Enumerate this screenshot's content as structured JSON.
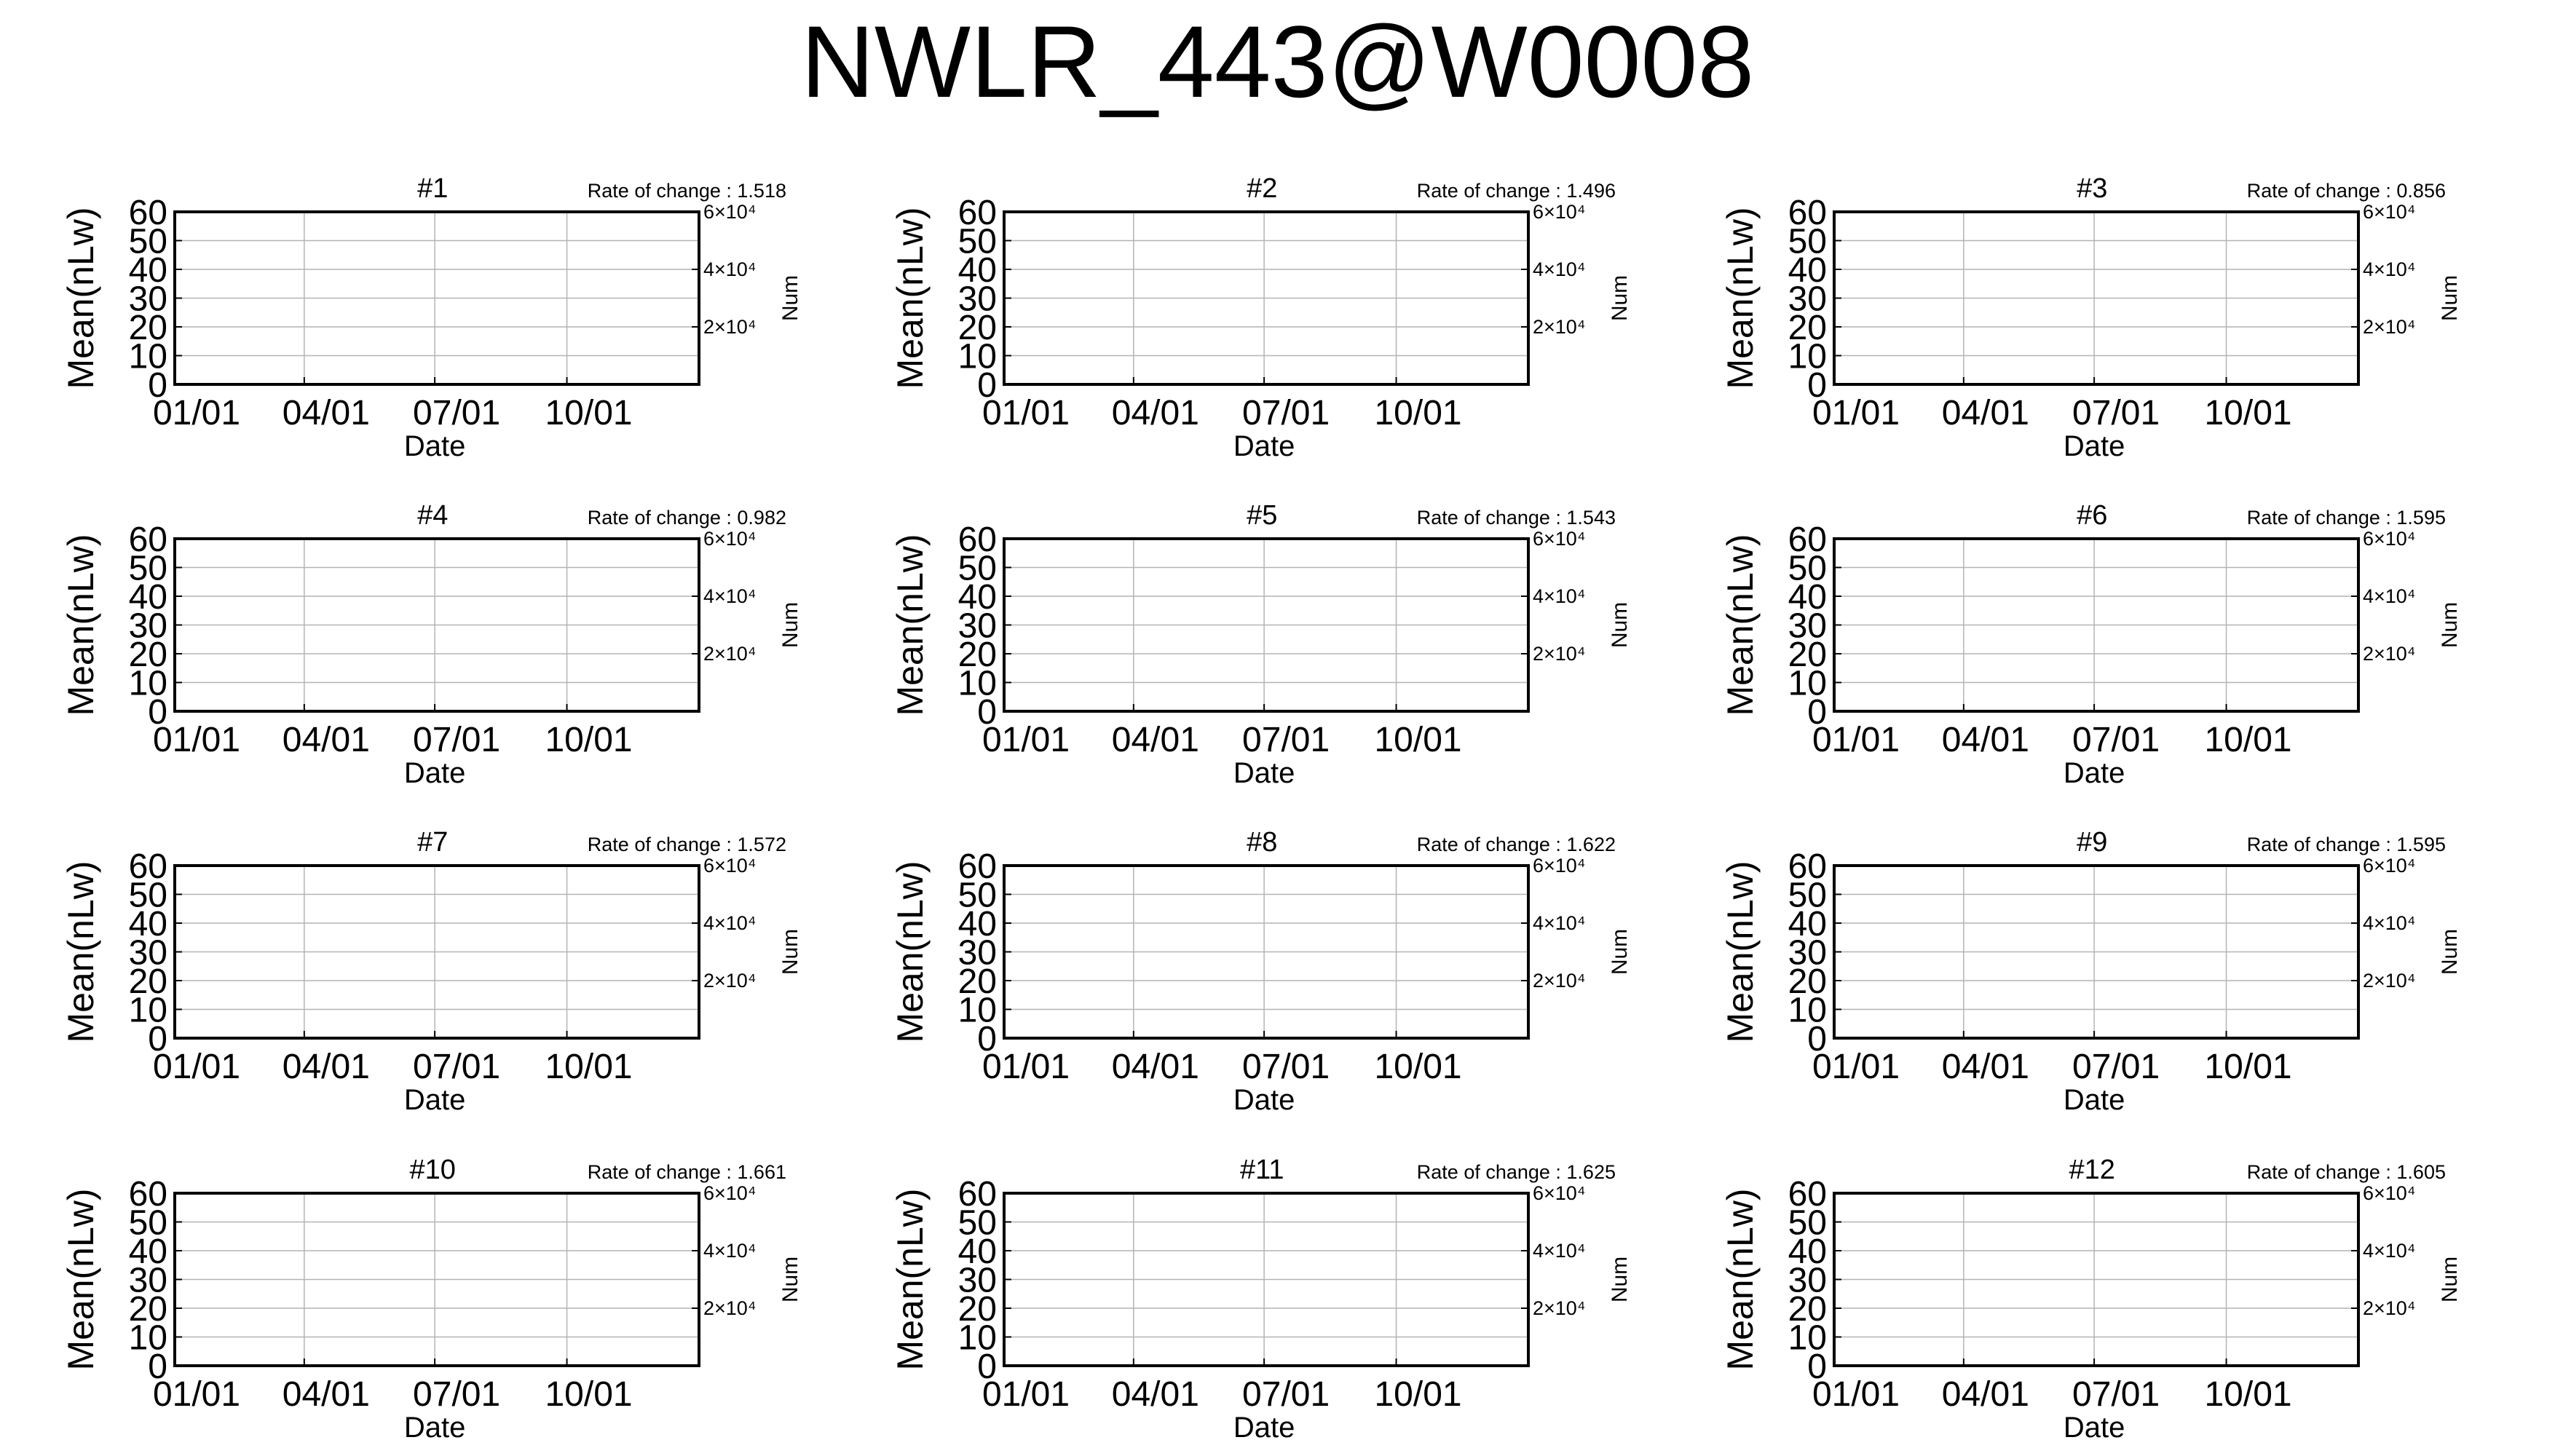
{
  "title": "NWLR_443@W0008",
  "chart_data": [
    {
      "type": "line",
      "title": "#1",
      "annotation": "Rate of change : 1.518",
      "xlabel": "Date",
      "ylabel": "Mean(nLw)",
      "y2label": "Num",
      "ylim": [
        0,
        60
      ],
      "yticks": [
        0,
        10,
        20,
        30,
        40,
        50,
        60
      ],
      "xticks": [
        "01/01",
        "04/01",
        "07/01",
        "10/01"
      ],
      "y2ticks": [
        "2×10⁴",
        "4×10⁴",
        "6×10⁴"
      ],
      "grid": true,
      "color": "#7fc4e0",
      "x": [],
      "y": [],
      "y_low": [],
      "y_high": []
    },
    {
      "type": "line",
      "title": "#2",
      "annotation": "Rate of change : 1.496",
      "xlabel": "Date",
      "ylabel": "Mean(nLw)",
      "y2label": "Num",
      "ylim": [
        0,
        60
      ],
      "yticks": [
        0,
        10,
        20,
        30,
        40,
        50,
        60
      ],
      "xticks": [
        "01/01",
        "04/01",
        "07/01",
        "10/01"
      ],
      "y2ticks": [
        "2×10⁴",
        "4×10⁴",
        "6×10⁴"
      ],
      "grid": true,
      "color": "#7fc4e0",
      "x": [],
      "y": [],
      "y_low": [],
      "y_high": []
    },
    {
      "type": "line",
      "title": "#3",
      "annotation": "Rate of change : 0.856",
      "xlabel": "Date",
      "ylabel": "Mean(nLw)",
      "y2label": "Num",
      "ylim": [
        0,
        60
      ],
      "yticks": [
        0,
        10,
        20,
        30,
        40,
        50,
        60
      ],
      "xticks": [
        "01/01",
        "04/01",
        "07/01",
        "10/01"
      ],
      "y2ticks": [
        "2×10⁴",
        "4×10⁴",
        "6×10⁴"
      ],
      "grid": true,
      "color": "#7fc4e0",
      "x": [],
      "y": [],
      "y_low": [],
      "y_high": []
    },
    {
      "type": "line",
      "title": "#4",
      "annotation": "Rate of change : 0.982",
      "xlabel": "Date",
      "ylabel": "Mean(nLw)",
      "y2label": "Num",
      "ylim": [
        0,
        60
      ],
      "yticks": [
        0,
        10,
        20,
        30,
        40,
        50,
        60
      ],
      "xticks": [
        "01/01",
        "04/01",
        "07/01",
        "10/01"
      ],
      "y2ticks": [
        "2×10⁴",
        "4×10⁴",
        "6×10⁴"
      ],
      "grid": true,
      "color": "#7fc4e0",
      "x": [],
      "y": [],
      "y_low": [],
      "y_high": []
    },
    {
      "type": "line",
      "title": "#5",
      "annotation": "Rate of change : 1.543",
      "xlabel": "Date",
      "ylabel": "Mean(nLw)",
      "y2label": "Num",
      "ylim": [
        0,
        60
      ],
      "yticks": [
        0,
        10,
        20,
        30,
        40,
        50,
        60
      ],
      "xticks": [
        "01/01",
        "04/01",
        "07/01",
        "10/01"
      ],
      "y2ticks": [
        "2×10⁴",
        "4×10⁴",
        "6×10⁴"
      ],
      "grid": true,
      "color": "#7fc4e0",
      "x": [],
      "y": [],
      "y_low": [],
      "y_high": []
    },
    {
      "type": "line",
      "title": "#6",
      "annotation": "Rate of change : 1.595",
      "xlabel": "Date",
      "ylabel": "Mean(nLw)",
      "y2label": "Num",
      "ylim": [
        0,
        60
      ],
      "yticks": [
        0,
        10,
        20,
        30,
        40,
        50,
        60
      ],
      "xticks": [
        "01/01",
        "04/01",
        "07/01",
        "10/01"
      ],
      "y2ticks": [
        "2×10⁴",
        "4×10⁴",
        "6×10⁴"
      ],
      "grid": true,
      "color": "#7fc4e0",
      "x": [],
      "y": [],
      "y_low": [],
      "y_high": []
    },
    {
      "type": "line",
      "title": "#7",
      "annotation": "Rate of change : 1.572",
      "xlabel": "Date",
      "ylabel": "Mean(nLw)",
      "y2label": "Num",
      "ylim": [
        0,
        60
      ],
      "yticks": [
        0,
        10,
        20,
        30,
        40,
        50,
        60
      ],
      "xticks": [
        "01/01",
        "04/01",
        "07/01",
        "10/01"
      ],
      "y2ticks": [
        "2×10⁴",
        "4×10⁴",
        "6×10⁴"
      ],
      "grid": true,
      "color": "#7fc4e0",
      "x": [],
      "y": [],
      "y_low": [],
      "y_high": []
    },
    {
      "type": "line",
      "title": "#8",
      "annotation": "Rate of change : 1.622",
      "xlabel": "Date",
      "ylabel": "Mean(nLw)",
      "y2label": "Num",
      "ylim": [
        0,
        60
      ],
      "yticks": [
        0,
        10,
        20,
        30,
        40,
        50,
        60
      ],
      "xticks": [
        "01/01",
        "04/01",
        "07/01",
        "10/01"
      ],
      "y2ticks": [
        "2×10⁴",
        "4×10⁴",
        "6×10⁴"
      ],
      "grid": true,
      "color": "#7fc4e0",
      "x": [],
      "y": [],
      "y_low": [],
      "y_high": []
    },
    {
      "type": "line",
      "title": "#9",
      "annotation": "Rate of change : 1.595",
      "xlabel": "Date",
      "ylabel": "Mean(nLw)",
      "y2label": "Num",
      "ylim": [
        0,
        60
      ],
      "yticks": [
        0,
        10,
        20,
        30,
        40,
        50,
        60
      ],
      "xticks": [
        "01/01",
        "04/01",
        "07/01",
        "10/01"
      ],
      "y2ticks": [
        "2×10⁴",
        "4×10⁴",
        "6×10⁴"
      ],
      "grid": true,
      "color": "#7fc4e0",
      "x": [],
      "y": [],
      "y_low": [],
      "y_high": []
    },
    {
      "type": "line",
      "title": "#10",
      "annotation": "Rate of change : 1.661",
      "xlabel": "Date",
      "ylabel": "Mean(nLw)",
      "y2label": "Num",
      "ylim": [
        0,
        60
      ],
      "yticks": [
        0,
        10,
        20,
        30,
        40,
        50,
        60
      ],
      "xticks": [
        "01/01",
        "04/01",
        "07/01",
        "10/01"
      ],
      "y2ticks": [
        "2×10⁴",
        "4×10⁴",
        "6×10⁴"
      ],
      "grid": true,
      "color": "#7fc4e0",
      "x": [],
      "y": [],
      "y_low": [],
      "y_high": []
    },
    {
      "type": "line",
      "title": "#11",
      "annotation": "Rate of change : 1.625",
      "xlabel": "Date",
      "ylabel": "Mean(nLw)",
      "y2label": "Num",
      "ylim": [
        0,
        60
      ],
      "yticks": [
        0,
        10,
        20,
        30,
        40,
        50,
        60
      ],
      "xticks": [
        "01/01",
        "04/01",
        "07/01",
        "10/01"
      ],
      "y2ticks": [
        "2×10⁴",
        "4×10⁴",
        "6×10⁴"
      ],
      "grid": true,
      "color": "#7fc4e0",
      "x": [],
      "y": [],
      "y_low": [],
      "y_high": []
    },
    {
      "type": "line",
      "title": "#12",
      "annotation": "Rate of change : 1.605",
      "xlabel": "Date",
      "ylabel": "Mean(nLw)",
      "y2label": "Num",
      "ylim": [
        0,
        60
      ],
      "yticks": [
        0,
        10,
        20,
        30,
        40,
        50,
        60
      ],
      "xticks": [
        "01/01",
        "04/01",
        "07/01",
        "10/01"
      ],
      "y2ticks": [
        "2×10⁴",
        "4×10⁴",
        "6×10⁴"
      ],
      "grid": true,
      "color": "#7fc4e0",
      "x": [],
      "y": [],
      "y_low": [],
      "y_high": []
    }
  ]
}
